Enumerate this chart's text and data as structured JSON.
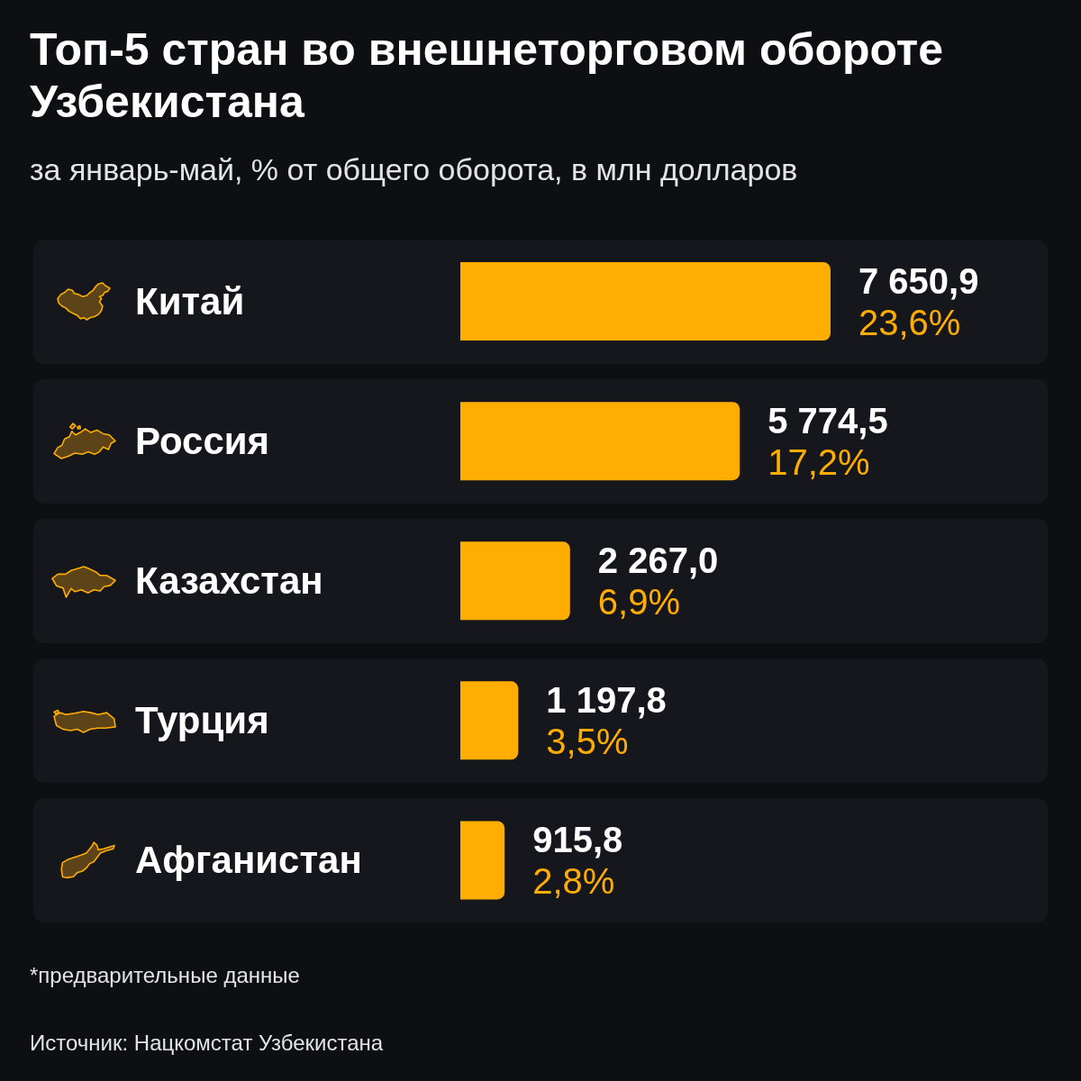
{
  "chart_data": {
    "type": "bar",
    "orientation": "horizontal",
    "title": "Топ-5 стран во внешнеторговом обороте Узбекистана",
    "subtitle": "за январь-май, % от общего оборота, в млн долларов",
    "categories": [
      "Китай",
      "Россия",
      "Казахстан",
      "Турция",
      "Афганистан"
    ],
    "values": [
      7650.9,
      5774.5,
      2267.0,
      1197.8,
      915.8
    ],
    "value_labels": [
      "7 650,9",
      "5 774,5",
      "2 267,0",
      "1 197,8",
      "915,8"
    ],
    "color": "#ffad00",
    "annotations": [
      {
        "text": "23,6%",
        "x": 7650.9,
        "y": "Китай"
      },
      {
        "text": "17,2%",
        "x": 5774.5,
        "y": "Россия"
      },
      {
        "text": "6,9%",
        "x": 2267.0,
        "y": "Казахстан"
      },
      {
        "text": "3,5%",
        "x": 1197.8,
        "y": "Турция"
      },
      {
        "text": "2,8%",
        "x": 915.8,
        "y": "Афганистан"
      },
      "*предварительные данные",
      "Источник: Нацкомстат Узбекистана"
    ]
  }
}
